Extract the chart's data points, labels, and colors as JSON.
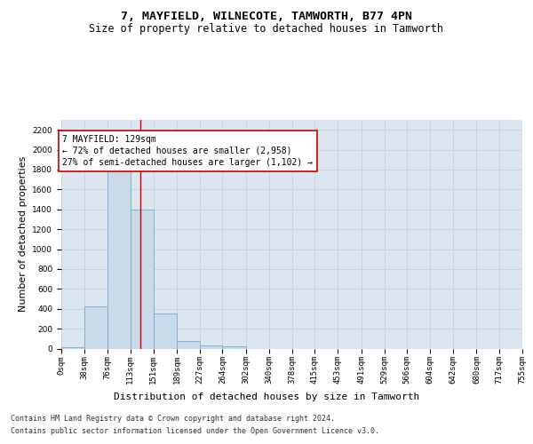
{
  "title": "7, MAYFIELD, WILNECOTE, TAMWORTH, B77 4PN",
  "subtitle": "Size of property relative to detached houses in Tamworth",
  "xlabel": "Distribution of detached houses by size in Tamworth",
  "ylabel": "Number of detached properties",
  "bin_edges": [
    0,
    38,
    76,
    113,
    151,
    189,
    227,
    264,
    302,
    340,
    378,
    415,
    453,
    491,
    529,
    566,
    604,
    642,
    680,
    717,
    755
  ],
  "bin_counts": [
    15,
    420,
    1800,
    1400,
    350,
    80,
    32,
    20,
    0,
    0,
    0,
    0,
    0,
    0,
    0,
    0,
    0,
    0,
    0,
    0
  ],
  "bar_facecolor": "#c9daea",
  "bar_edgecolor": "#7aaac8",
  "grid_color": "#c8d0dc",
  "background_color": "#dce6f0",
  "property_line_x": 129,
  "property_line_color": "#cc0000",
  "annotation_text": "7 MAYFIELD: 129sqm\n← 72% of detached houses are smaller (2,958)\n27% of semi-detached houses are larger (1,102) →",
  "annotation_box_color": "#cc0000",
  "ylim": [
    0,
    2300
  ],
  "yticks": [
    0,
    200,
    400,
    600,
    800,
    1000,
    1200,
    1400,
    1600,
    1800,
    2000,
    2200
  ],
  "footer_line1": "Contains HM Land Registry data © Crown copyright and database right 2024.",
  "footer_line2": "Contains public sector information licensed under the Open Government Licence v3.0.",
  "title_fontsize": 9.5,
  "subtitle_fontsize": 8.5,
  "ylabel_fontsize": 8,
  "xlabel_fontsize": 8,
  "tick_fontsize": 6.5,
  "annotation_fontsize": 7,
  "footer_fontsize": 6
}
